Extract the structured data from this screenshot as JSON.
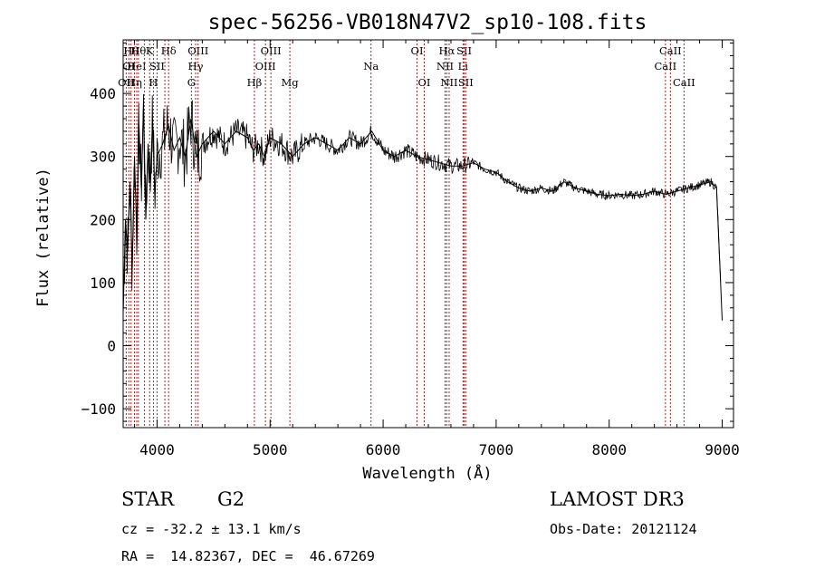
{
  "chart_data": {
    "type": "line",
    "title": "spec-56256-VB018N47V2_sp10-108.fits",
    "xlabel": "Wavelength (Å)",
    "ylabel": "Flux (relative)",
    "xlim": [
      3700,
      9100
    ],
    "ylim": [
      -130,
      485
    ],
    "xticks": [
      4000,
      5000,
      6000,
      7000,
      8000,
      9000
    ],
    "yticks": [
      -100,
      0,
      100,
      200,
      300,
      400
    ],
    "series": [
      {
        "name": "flux",
        "x": [
          3700,
          3720,
          3740,
          3760,
          3780,
          3800,
          3820,
          3840,
          3860,
          3880,
          3900,
          3920,
          3940,
          3960,
          3980,
          4000,
          4050,
          4100,
          4150,
          4200,
          4250,
          4300,
          4350,
          4400,
          4500,
          4600,
          4700,
          4800,
          4850,
          4900,
          4950,
          5000,
          5100,
          5200,
          5300,
          5400,
          5500,
          5600,
          5700,
          5800,
          5900,
          6000,
          6100,
          6200,
          6300,
          6400,
          6500,
          6600,
          6700,
          6800,
          6900,
          7000,
          7100,
          7200,
          7300,
          7400,
          7500,
          7600,
          7700,
          7800,
          7900,
          8000,
          8100,
          8200,
          8300,
          8400,
          8500,
          8600,
          8700,
          8800,
          8900,
          8950,
          9000
        ],
        "y": [
          50,
          200,
          150,
          260,
          120,
          300,
          180,
          350,
          250,
          380,
          200,
          320,
          260,
          360,
          240,
          300,
          320,
          350,
          310,
          330,
          300,
          360,
          300,
          320,
          340,
          320,
          340,
          330,
          310,
          320,
          300,
          330,
          320,
          300,
          320,
          330,
          320,
          310,
          330,
          320,
          340,
          310,
          300,
          310,
          300,
          295,
          290,
          285,
          285,
          290,
          280,
          275,
          260,
          250,
          245,
          250,
          245,
          260,
          250,
          245,
          240,
          238,
          240,
          238,
          240,
          245,
          240,
          245,
          250,
          255,
          260,
          250,
          40
        ]
      }
    ],
    "line_markers": [
      {
        "x": 3727,
        "label": "OII",
        "row": 2
      },
      {
        "x": 3750,
        "label": "OI",
        "row": 1
      },
      {
        "x": 3770,
        "label": "Hθ",
        "row": 0
      },
      {
        "x": 3800,
        "label": "Hη",
        "row": 2
      },
      {
        "x": 3820,
        "label": "HeI",
        "row": 1
      },
      {
        "x": 3835,
        "label": "Hθ",
        "row": 0
      },
      {
        "x": 3889,
        "label": "",
        "row": 3
      },
      {
        "x": 3934,
        "label": "K",
        "row": 0
      },
      {
        "x": 3968,
        "label": "H",
        "row": 2
      },
      {
        "x": 4000,
        "label": "SII",
        "row": 1
      },
      {
        "x": 4069,
        "label": "",
        "row": 3
      },
      {
        "x": 4102,
        "label": "Hδ",
        "row": 0
      },
      {
        "x": 4304,
        "label": "G",
        "row": 2
      },
      {
        "x": 4341,
        "label": "Hγ",
        "row": 1
      },
      {
        "x": 4363,
        "label": "OIII",
        "row": 0
      },
      {
        "x": 4861,
        "label": "Hβ",
        "row": 2
      },
      {
        "x": 4959,
        "label": "OIII",
        "row": 1
      },
      {
        "x": 5007,
        "label": "OIII",
        "row": 0
      },
      {
        "x": 5175,
        "label": "Mg",
        "row": 2
      },
      {
        "x": 5893,
        "label": "Na",
        "row": 1
      },
      {
        "x": 6300,
        "label": "OI",
        "row": 0
      },
      {
        "x": 6364,
        "label": "OI",
        "row": 2
      },
      {
        "x": 6548,
        "label": "NII",
        "row": 1
      },
      {
        "x": 6563,
        "label": "Hα",
        "row": 0
      },
      {
        "x": 6584,
        "label": "NII",
        "row": 2
      },
      {
        "x": 6707,
        "label": "Li",
        "row": 1
      },
      {
        "x": 6717,
        "label": "SII",
        "row": 0
      },
      {
        "x": 6731,
        "label": "SII",
        "row": 2
      },
      {
        "x": 8498,
        "label": "CaII",
        "row": 1
      },
      {
        "x": 8542,
        "label": "CaII",
        "row": 0
      },
      {
        "x": 8662,
        "label": "CaII",
        "row": 2
      }
    ]
  },
  "info": {
    "class": "STAR",
    "subclass": "G2",
    "survey": "LAMOST DR3",
    "cz": "cz = -32.2 ± 13.1 km/s",
    "obsdate": "Obs-Date: 20121124",
    "radec": "RA =  14.82367, DEC =  46.67269"
  }
}
